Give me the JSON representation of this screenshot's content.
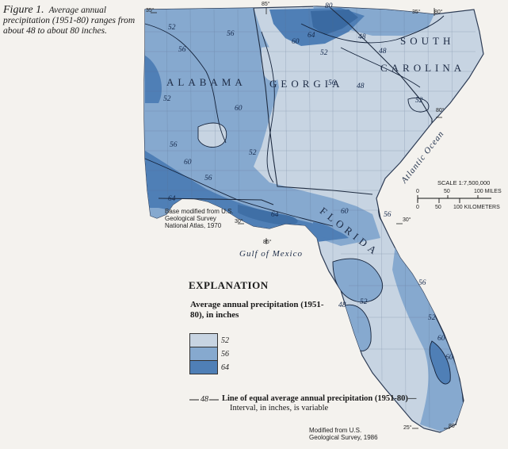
{
  "caption": {
    "figure": "Figure 1.",
    "text": "Average annual precipitation (1951-80) ranges from about 48 to about 80 inches."
  },
  "states": [
    "ALABAMA",
    "GEORGIA",
    "SOUTH",
    "CAROLINA",
    "FLORIDA"
  ],
  "water_labels": {
    "gulf": "Gulf of Mexico",
    "ocean": "Atlantic Ocean"
  },
  "coordinates": {
    "lat35_left": "35°",
    "lon85_top": "85°",
    "lat35_right": "35°",
    "lon80_top": "80°",
    "lon80_right": "80°",
    "lat30_left": "30°",
    "lon85_bottom": "85°",
    "lat30_right": "30°",
    "lat25": "25°",
    "lon80_bottom": "80°"
  },
  "base_credit": "Base modified from U.S. Geological Survey National Atlas, 1970",
  "source_credit": "Modified from U.S. Geological Survey, 1986",
  "scale": {
    "title": "SCALE 1:7,500,000",
    "miles": [
      "0",
      "50",
      "100 MILES"
    ],
    "km": [
      "0",
      "50",
      "100 KILOMETERS"
    ]
  },
  "isohyet_labels": [
    "52",
    "56",
    "56",
    "52",
    "80",
    "64",
    "60",
    "48",
    "48",
    "48",
    "52",
    "56",
    "56",
    "60",
    "56",
    "60",
    "52",
    "64",
    "64",
    "60",
    "52",
    "56",
    "56",
    "52",
    "48",
    "52",
    "60",
    "60"
  ],
  "explanation": {
    "title": "EXPLANATION",
    "subtitle": "Average annual precipitation (1951-80), in inches",
    "classes": [
      {
        "label": "52",
        "color": "#c7d4e2"
      },
      {
        "label": "56",
        "color": "#86a9cf"
      },
      {
        "label": "64",
        "color": "#4f7fb6"
      }
    ],
    "isoline_example": "48",
    "isoline_text": "Line of equal average annual precipitation (1951-80)—",
    "isoline_note": "Interval, in inches, is variable"
  },
  "colors": {
    "light": "#c7d4e2",
    "medium": "#86a9cf",
    "dark": "#4f7fb6",
    "paper": "#f4f2ee"
  }
}
